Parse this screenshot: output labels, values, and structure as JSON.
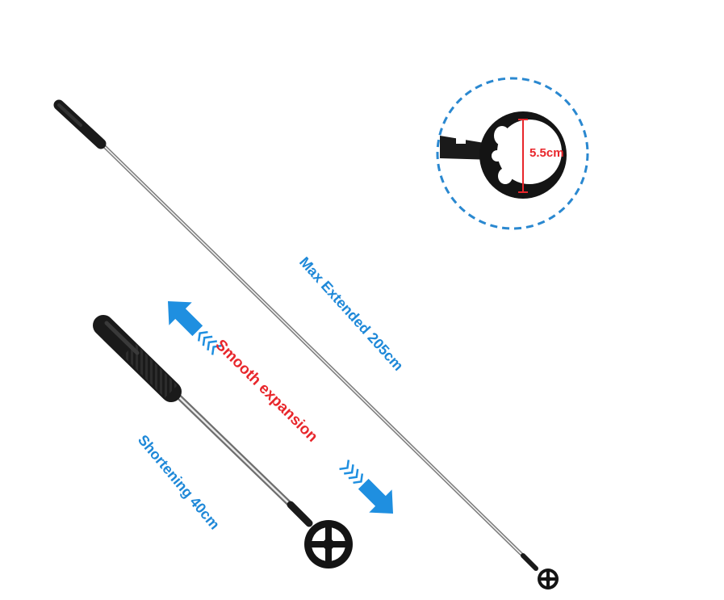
{
  "labels": {
    "max_extended": "Max Extended 205cm",
    "smooth_expansion": "Smooth expansion",
    "shortening": "Shortening 40cm",
    "head_diameter": "5.5cm"
  },
  "colors": {
    "blue_text": "#1e88d8",
    "red_text": "#e8262b",
    "arrow_blue": "#1f8fe0",
    "dashed_circle": "#2a88d0",
    "rod_light": "#e6e6e6",
    "rod_dark": "#6e6e6e",
    "handle": "#1a1a1a"
  },
  "icons": {
    "arrow_up_left": "arrow-up-left-icon",
    "arrow_down_right": "arrow-down-right-icon"
  }
}
